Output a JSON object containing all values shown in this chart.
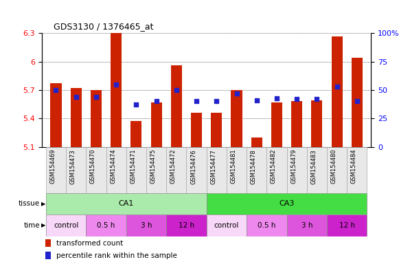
{
  "title": "GDS3130 / 1376465_at",
  "samples": [
    "GSM154469",
    "GSM154473",
    "GSM154470",
    "GSM154474",
    "GSM154471",
    "GSM154475",
    "GSM154472",
    "GSM154476",
    "GSM154477",
    "GSM154481",
    "GSM154478",
    "GSM154482",
    "GSM154479",
    "GSM154483",
    "GSM154480",
    "GSM154484"
  ],
  "red_values": [
    5.77,
    5.72,
    5.7,
    6.3,
    5.37,
    5.57,
    5.96,
    5.46,
    5.46,
    5.7,
    5.2,
    5.57,
    5.58,
    5.59,
    6.27,
    6.04
  ],
  "blue_percentile": [
    50,
    44,
    44,
    55,
    37,
    40,
    50,
    40,
    40,
    47,
    41,
    43,
    42,
    42,
    53,
    40
  ],
  "ylim_left": [
    5.1,
    6.3
  ],
  "ylim_right": [
    0,
    100
  ],
  "yticks_left": [
    5.1,
    5.4,
    5.7,
    6.0,
    6.3
  ],
  "ytick_labels_left": [
    "5.1",
    "5.4",
    "5.7",
    "6",
    "6.3"
  ],
  "yticks_right": [
    0,
    25,
    50,
    75,
    100
  ],
  "ytick_labels_right": [
    "0",
    "25",
    "50",
    "75",
    "100%"
  ],
  "bar_color": "#cc2200",
  "dot_color": "#2222cc",
  "background_color": "#ffffff",
  "bar_width": 0.55,
  "tissue_defs": [
    {
      "label": "CA1",
      "start": 0,
      "end": 7,
      "color": "#aaeaaa"
    },
    {
      "label": "CA3",
      "start": 8,
      "end": 15,
      "color": "#44dd44"
    }
  ],
  "time_defs": [
    {
      "label": "control",
      "start": 0,
      "end": 1,
      "color": "#f8d8f8"
    },
    {
      "label": "0.5 h",
      "start": 2,
      "end": 3,
      "color": "#ee88ee"
    },
    {
      "label": "3 h",
      "start": 4,
      "end": 5,
      "color": "#dd55dd"
    },
    {
      "label": "12 h",
      "start": 6,
      "end": 7,
      "color": "#cc22cc"
    },
    {
      "label": "control",
      "start": 8,
      "end": 9,
      "color": "#f8d8f8"
    },
    {
      "label": "0.5 h",
      "start": 10,
      "end": 11,
      "color": "#ee88ee"
    },
    {
      "label": "3 h",
      "start": 12,
      "end": 13,
      "color": "#dd55dd"
    },
    {
      "label": "12 h",
      "start": 14,
      "end": 15,
      "color": "#cc22cc"
    }
  ]
}
